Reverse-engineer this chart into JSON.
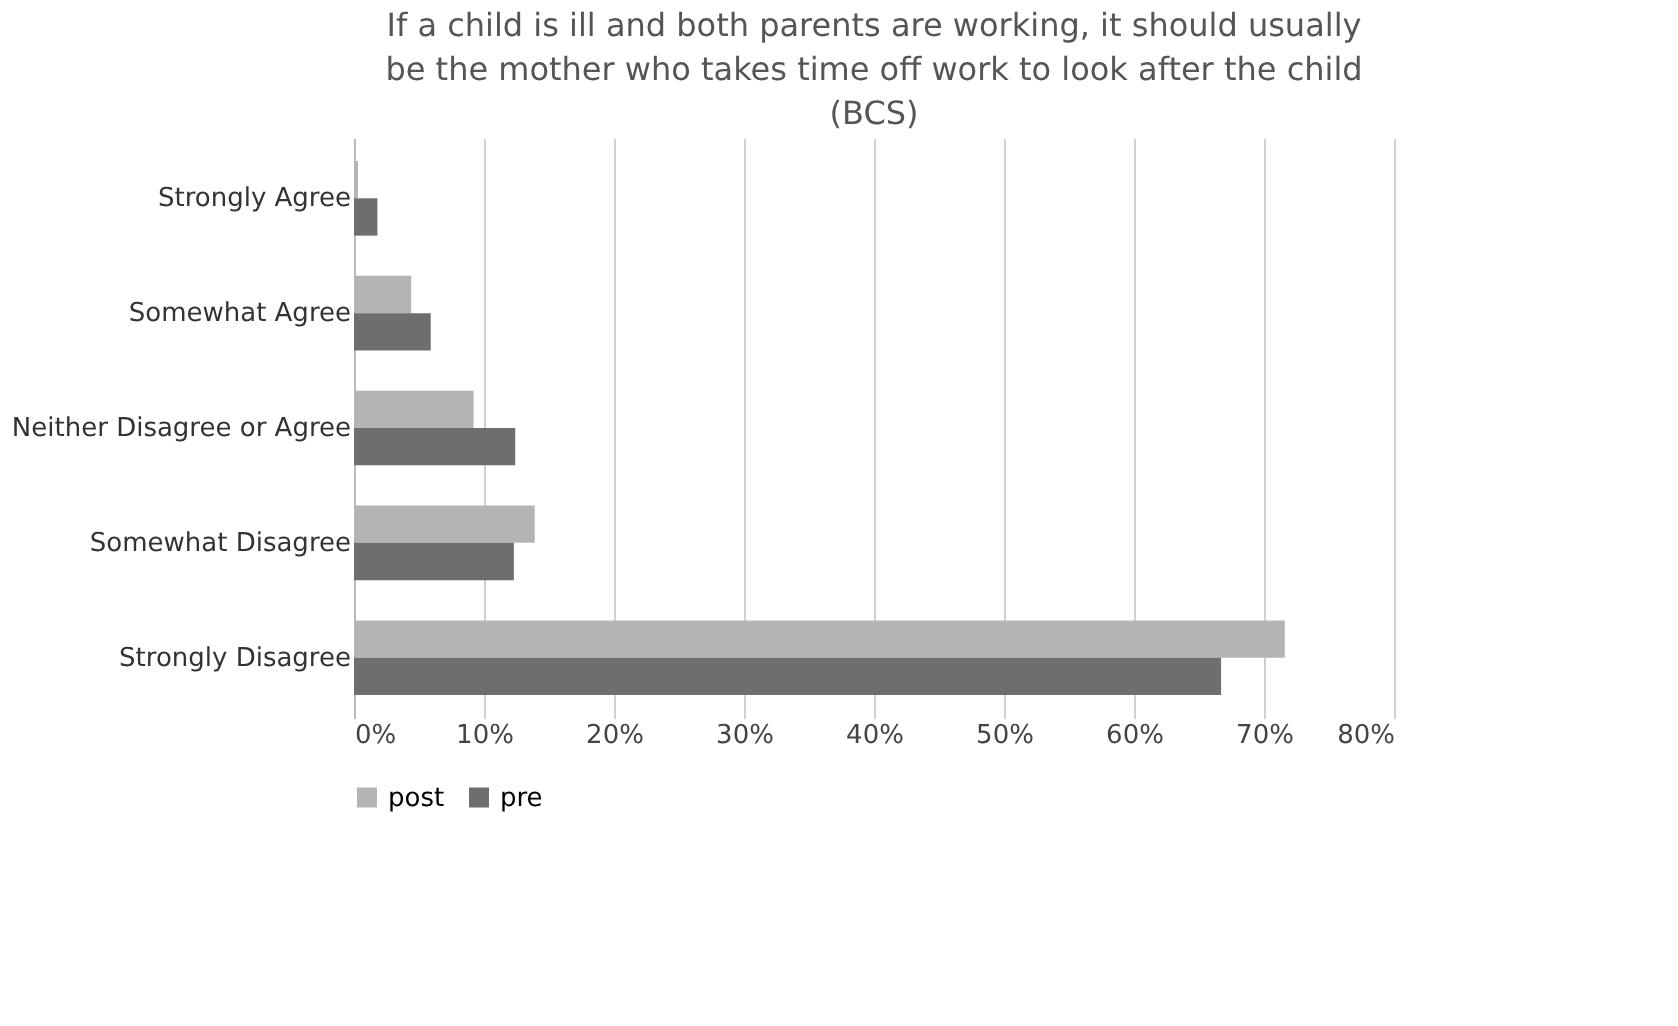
{
  "chart_data": {
    "type": "bar",
    "orientation": "horizontal",
    "title": "If a child is ill and both parents are working, it should usually be the mother who takes time off work to look after the child (BCS)",
    "categories": [
      "Strongly Agree",
      "Somewhat Agree",
      "Neither Disagree or Agree",
      "Somewhat Disagree",
      "Strongly Disagree"
    ],
    "series": [
      {
        "name": "post",
        "color": "#b4b4b4",
        "values": [
          0.3,
          4.4,
          9.2,
          13.9,
          71.6
        ]
      },
      {
        "name": "pre",
        "color": "#6e6e6e",
        "values": [
          1.8,
          5.9,
          12.4,
          12.3,
          66.7
        ]
      }
    ],
    "xlim": [
      0,
      80
    ],
    "xticks": [
      {
        "value": 0,
        "label": "0%"
      },
      {
        "value": 10,
        "label": "10%"
      },
      {
        "value": 20,
        "label": "20%"
      },
      {
        "value": 30,
        "label": "30%"
      },
      {
        "value": 40,
        "label": "40%"
      },
      {
        "value": 50,
        "label": "50%"
      },
      {
        "value": 60,
        "label": "60%"
      },
      {
        "value": 70,
        "label": "70%"
      },
      {
        "value": 80,
        "label": "80%"
      }
    ],
    "grid": "x",
    "legend": "bottom"
  }
}
